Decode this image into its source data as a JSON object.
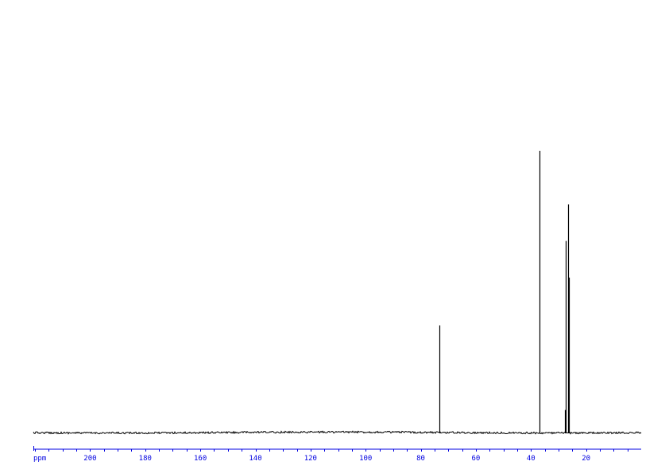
{
  "chart_data": {
    "type": "line",
    "title": "",
    "xlabel": "ppm",
    "ylabel": "",
    "xlim": [
      220.6,
      0
    ],
    "x_reversed": true,
    "ylim": [
      0,
      100
    ],
    "grid": false,
    "x_major_ticks": [
      200,
      180,
      160,
      140,
      120,
      100,
      80,
      60,
      40,
      20
    ],
    "x_minor_tick_step": 5,
    "peaks": [
      {
        "ppm": 73.3,
        "intensity": 38
      },
      {
        "ppm": 37.0,
        "intensity": 100
      },
      {
        "ppm": 27.8,
        "intensity": 8
      },
      {
        "ppm": 27.4,
        "intensity": 68
      },
      {
        "ppm": 26.5,
        "intensity": 81
      },
      {
        "ppm": 26.2,
        "intensity": 55
      }
    ],
    "colors": {
      "spectrum": "#000000",
      "axis": "#0000e0"
    }
  }
}
